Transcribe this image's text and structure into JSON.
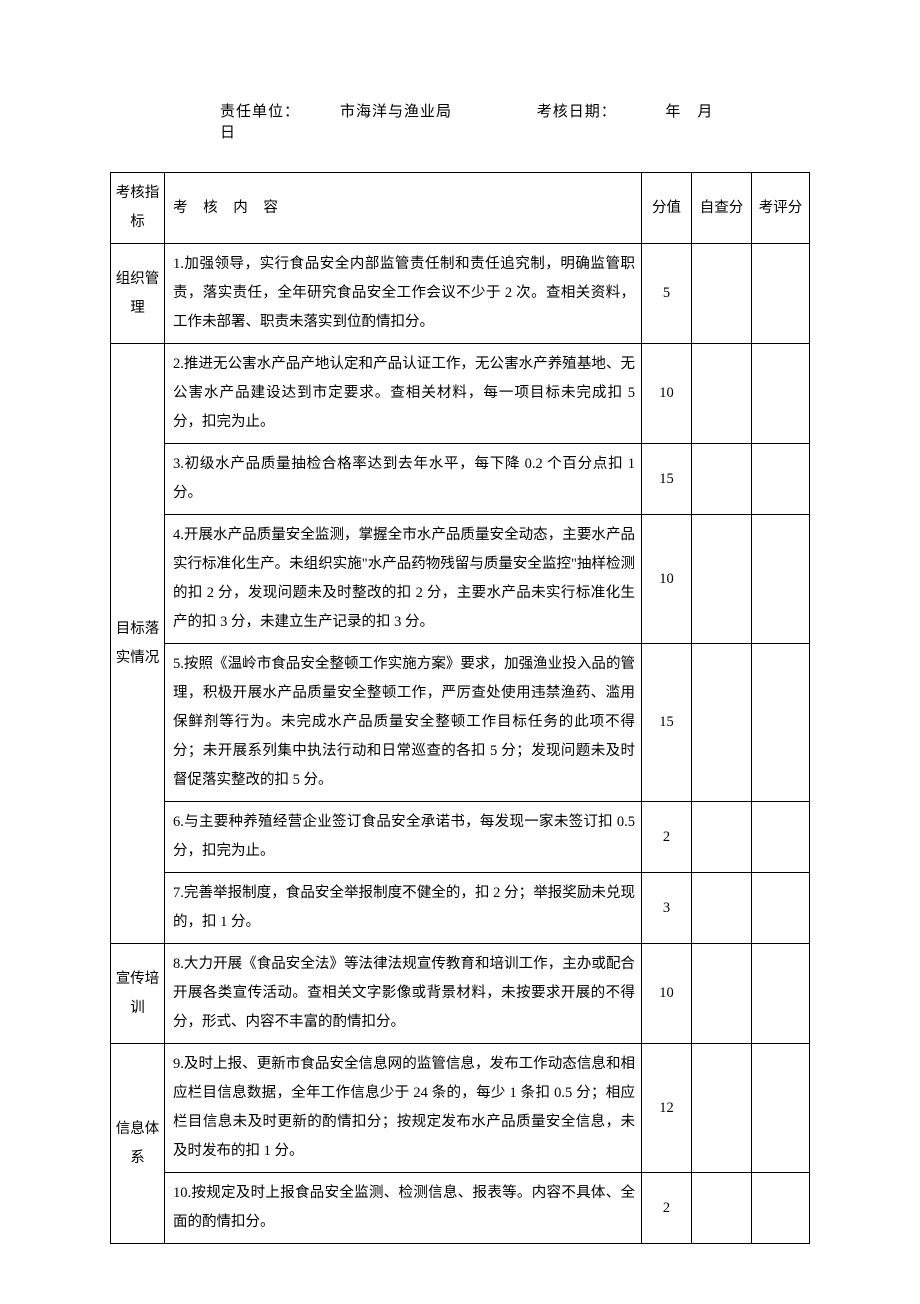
{
  "header": {
    "unit_label": "责任单位：",
    "unit_value": "市海洋与渔业局",
    "date_label": "考核日期：",
    "date_value": "年　月　日"
  },
  "columns": {
    "indicator": "考核指标",
    "content": "考 核 内 容",
    "score": "分值",
    "self": "自查分",
    "eval": "考评分"
  },
  "groups": [
    {
      "indicator": "组织管理",
      "rows": [
        {
          "content": "1.加强领导，实行食品安全内部监管责任制和责任追究制，明确监管职责，落实责任，全年研究食品安全工作会议不少于 2 次。查相关资料，工作未部署、职责未落实到位酌情扣分。",
          "score": "5",
          "self": "",
          "eval": ""
        }
      ]
    },
    {
      "indicator": "目标落实情况",
      "rows": [
        {
          "content": "2.推进无公害水产品产地认定和产品认证工作，无公害水产养殖基地、无公害水产品建设达到市定要求。查相关材料，每一项目标未完成扣 5 分，扣完为止。",
          "score": "10",
          "self": "",
          "eval": ""
        },
        {
          "content": "3.初级水产品质量抽检合格率达到去年水平，每下降 0.2 个百分点扣 1 分。",
          "score": "15",
          "self": "",
          "eval": ""
        },
        {
          "content": "4.开展水产品质量安全监测，掌握全市水产品质量安全动态，主要水产品实行标准化生产。未组织实施\"水产品药物残留与质量安全监控\"抽样检测的扣 2 分，发现问题未及时整改的扣 2 分，主要水产品未实行标准化生产的扣 3 分，未建立生产记录的扣 3 分。",
          "score": "10",
          "self": "",
          "eval": ""
        },
        {
          "content": "5.按照《温岭市食品安全整顿工作实施方案》要求，加强渔业投入品的管理，积极开展水产品质量安全整顿工作，严厉查处使用违禁渔药、滥用保鲜剂等行为。未完成水产品质量安全整顿工作目标任务的此项不得分；未开展系列集中执法行动和日常巡查的各扣 5 分；发现问题未及时督促落实整改的扣 5 分。",
          "score": "15",
          "self": "",
          "eval": ""
        },
        {
          "content": "6.与主要种养殖经营企业签订食品安全承诺书，每发现一家未签订扣 0.5 分，扣完为止。",
          "score": "2",
          "self": "",
          "eval": ""
        },
        {
          "content": "7.完善举报制度，食品安全举报制度不健全的，扣 2 分；举报奖励未兑现的，扣 1 分。",
          "score": "3",
          "self": "",
          "eval": ""
        }
      ]
    },
    {
      "indicator": "宣传培训",
      "rows": [
        {
          "content": "8.大力开展《食品安全法》等法律法规宣传教育和培训工作，主办或配合开展各类宣传活动。查相关文字影像或背景材料，未按要求开展的不得分，形式、内容不丰富的酌情扣分。",
          "score": "10",
          "self": "",
          "eval": ""
        }
      ]
    },
    {
      "indicator": "信息体系",
      "rows": [
        {
          "content": "9.及时上报、更新市食品安全信息网的监管信息，发布工作动态信息和相应栏目信息数据，全年工作信息少于 24 条的，每少 1 条扣 0.5 分；相应栏目信息未及时更新的酌情扣分；按规定发布水产品质量安全信息，未及时发布的扣 1 分。",
          "score": "12",
          "self": "",
          "eval": ""
        },
        {
          "content": "10.按规定及时上报食品安全监测、检测信息、报表等。内容不具体、全面的酌情扣分。",
          "score": "2",
          "self": "",
          "eval": ""
        }
      ]
    }
  ]
}
